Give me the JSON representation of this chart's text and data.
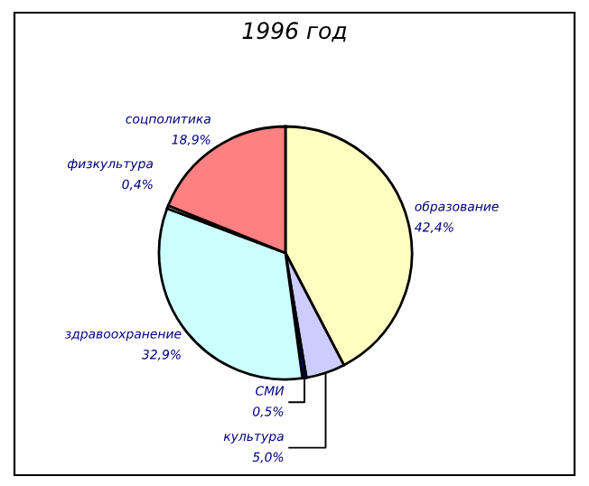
{
  "chart_data": {
    "type": "pie",
    "title": "1996 год",
    "categories": [
      "образование",
      "культура",
      "СМИ",
      "здравоохранение",
      "физкультура",
      "соцполитика"
    ],
    "values": [
      42.4,
      5.0,
      0.5,
      32.9,
      0.4,
      18.9
    ],
    "value_labels": [
      "42,4%",
      "5,0%",
      "0,5%",
      "32,9%",
      "0,4%",
      "18,9%"
    ],
    "colors": [
      "#ffffc0",
      "#ccccff",
      "#000080",
      "#ccffff",
      "#ffffff",
      "#ff8080"
    ]
  }
}
